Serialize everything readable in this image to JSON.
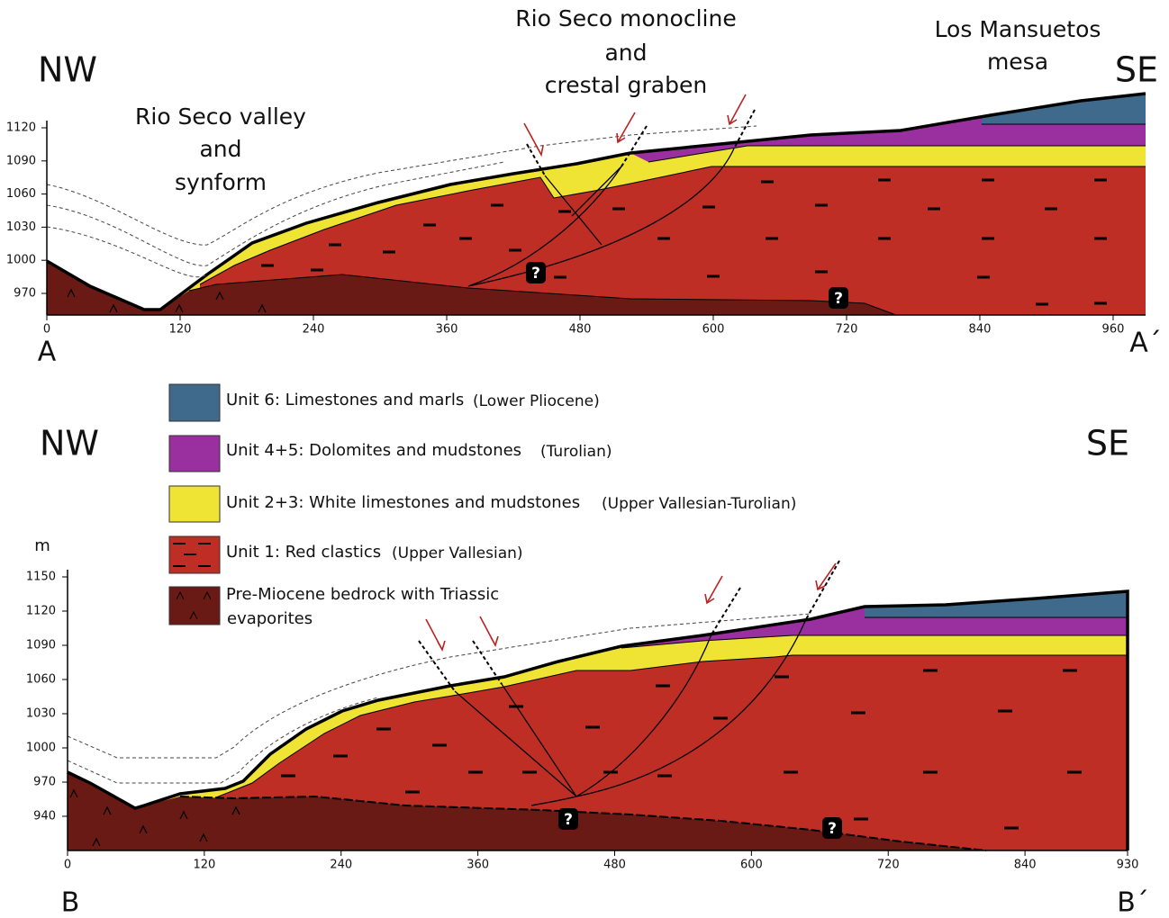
{
  "sections": [
    {
      "left_label": "NW",
      "right_label": "SE",
      "start_label": "A",
      "end_label": "A´",
      "annotations": [
        {
          "lines": [
            "Rio Seco valley",
            "and",
            "synform"
          ]
        },
        {
          "lines": [
            "Rio Seco monocline",
            "and",
            "crestal graben"
          ]
        },
        {
          "lines": [
            "Los Mansuetos",
            "mesa"
          ]
        }
      ],
      "unknown_marker": "?",
      "xticks": [
        0,
        120,
        240,
        360,
        480,
        600,
        720,
        840,
        960
      ],
      "yticks": [
        970,
        1000,
        1030,
        1060,
        1090,
        1120
      ]
    },
    {
      "left_label": "NW",
      "right_label": "SE",
      "start_label": "B",
      "end_label": "B´",
      "y_unit": "m",
      "unknown_marker": "?",
      "xticks": [
        0,
        120,
        240,
        360,
        480,
        600,
        720,
        840,
        930
      ],
      "yticks": [
        940,
        970,
        1000,
        1030,
        1060,
        1090,
        1120,
        1150
      ]
    }
  ],
  "legend": [
    {
      "name": "Unit 6:  Limestones and marls",
      "age": "(Lower Pliocene)"
    },
    {
      "name": "Unit 4+5:  Dolomites and mudstones",
      "age": "(Turolian)"
    },
    {
      "name": "Unit 2+3:  White limestones and mudstones",
      "age": "(Upper Vallesian-Turolian)"
    },
    {
      "name": "Unit 1:  Red clastics",
      "age": "(Upper Vallesian)"
    },
    {
      "name": "Pre-Miocene bedrock with Triassic",
      "age": "evaporites"
    }
  ]
}
